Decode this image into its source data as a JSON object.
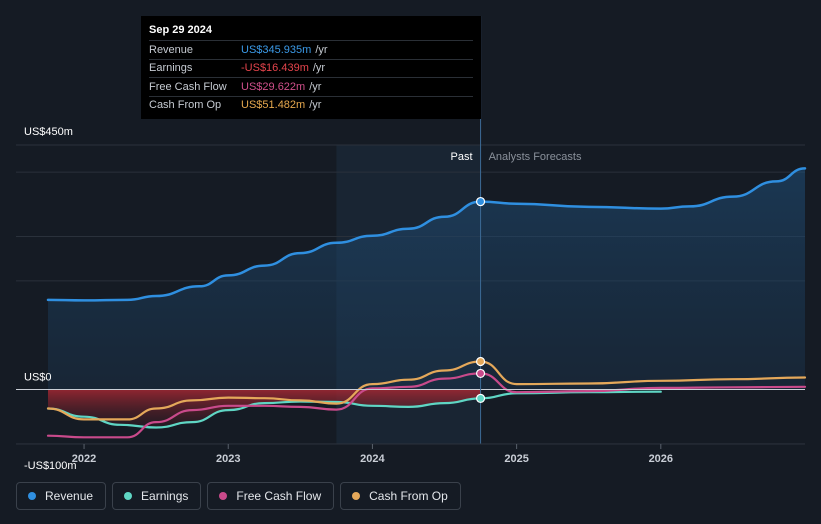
{
  "tooltip": {
    "date": "Sep 29 2024",
    "rows": [
      {
        "label": "Revenue",
        "value": "US$345.935m",
        "unit": "/yr",
        "color": "#3b9ae8"
      },
      {
        "label": "Earnings",
        "value": "-US$16.439m",
        "unit": "/yr",
        "color": "#e5444c"
      },
      {
        "label": "Free Cash Flow",
        "value": "US$29.622m",
        "unit": "/yr",
        "color": "#d0508b"
      },
      {
        "label": "Cash From Op",
        "value": "US$51.482m",
        "unit": "/yr",
        "color": "#e6a84e"
      }
    ]
  },
  "legend": [
    {
      "label": "Revenue",
      "color": "#2f8fe0"
    },
    {
      "label": "Earnings",
      "color": "#5fd6c4"
    },
    {
      "label": "Free Cash Flow",
      "color": "#c94a8b"
    },
    {
      "label": "Cash From Op",
      "color": "#e4a85a"
    }
  ],
  "chart_data": {
    "type": "line",
    "title": "",
    "y_unit": "US$m",
    "ylim": [
      -100,
      450
    ],
    "y_tick_labels": [
      "US$450m",
      "US$0",
      "-US$100m"
    ],
    "x_tick_labels": [
      "2022",
      "2023",
      "2024",
      "2025",
      "2026"
    ],
    "xlim": [
      2021.75,
      2027.0
    ],
    "region_labels": {
      "past": "Past",
      "forecast": "Analysts Forecasts"
    },
    "past_region_start": 2023.75,
    "divider": 2024.75,
    "series": [
      {
        "name": "Revenue",
        "color": "#2f8fe0",
        "fill": true,
        "x": [
          2021.75,
          2022.0,
          2022.3,
          2022.5,
          2022.8,
          2023.0,
          2023.25,
          2023.5,
          2023.75,
          2024.0,
          2024.25,
          2024.5,
          2024.75,
          2025.0,
          2025.5,
          2026.0,
          2026.2,
          2026.5,
          2026.8,
          2027.0
        ],
        "y": [
          165,
          164,
          165,
          172,
          190,
          210,
          228,
          251,
          270,
          283,
          296,
          318,
          345.9,
          342,
          336,
          333,
          337,
          355,
          383,
          407
        ]
      },
      {
        "name": "Earnings",
        "color": "#5fd6c4",
        "x": [
          2021.75,
          2022.0,
          2022.25,
          2022.5,
          2022.75,
          2023.0,
          2023.25,
          2023.5,
          2023.75,
          2024.0,
          2024.25,
          2024.5,
          2024.75,
          2025.0,
          2025.5,
          2026.0
        ],
        "y": [
          -35,
          -50,
          -65,
          -70,
          -60,
          -38,
          -25,
          -22,
          -23,
          -30,
          -32,
          -25,
          -16.4,
          -7,
          -5,
          -4
        ]
      },
      {
        "name": "Free Cash Flow",
        "color": "#c94a8b",
        "x": [
          2021.75,
          2022.0,
          2022.3,
          2022.5,
          2022.75,
          2023.0,
          2023.25,
          2023.5,
          2023.75,
          2024.0,
          2024.25,
          2024.5,
          2024.75,
          2025.0,
          2025.5,
          2026.0,
          2026.5,
          2027.0
        ],
        "y": [
          -85,
          -88,
          -88,
          -60,
          -38,
          -30,
          -30,
          -32,
          -37,
          2,
          5,
          20,
          29.6,
          -5,
          -3,
          3,
          4,
          5
        ]
      },
      {
        "name": "Cash From Op",
        "color": "#e4a85a",
        "x": [
          2021.75,
          2022.0,
          2022.3,
          2022.5,
          2022.75,
          2023.0,
          2023.25,
          2023.5,
          2023.75,
          2024.0,
          2024.25,
          2024.5,
          2024.75,
          2025.0,
          2025.5,
          2026.0,
          2026.5,
          2027.0
        ],
        "y": [
          -35,
          -55,
          -55,
          -35,
          -20,
          -15,
          -16,
          -20,
          -26,
          10,
          18,
          35,
          51.5,
          10,
          11,
          16,
          19,
          22
        ]
      }
    ]
  }
}
